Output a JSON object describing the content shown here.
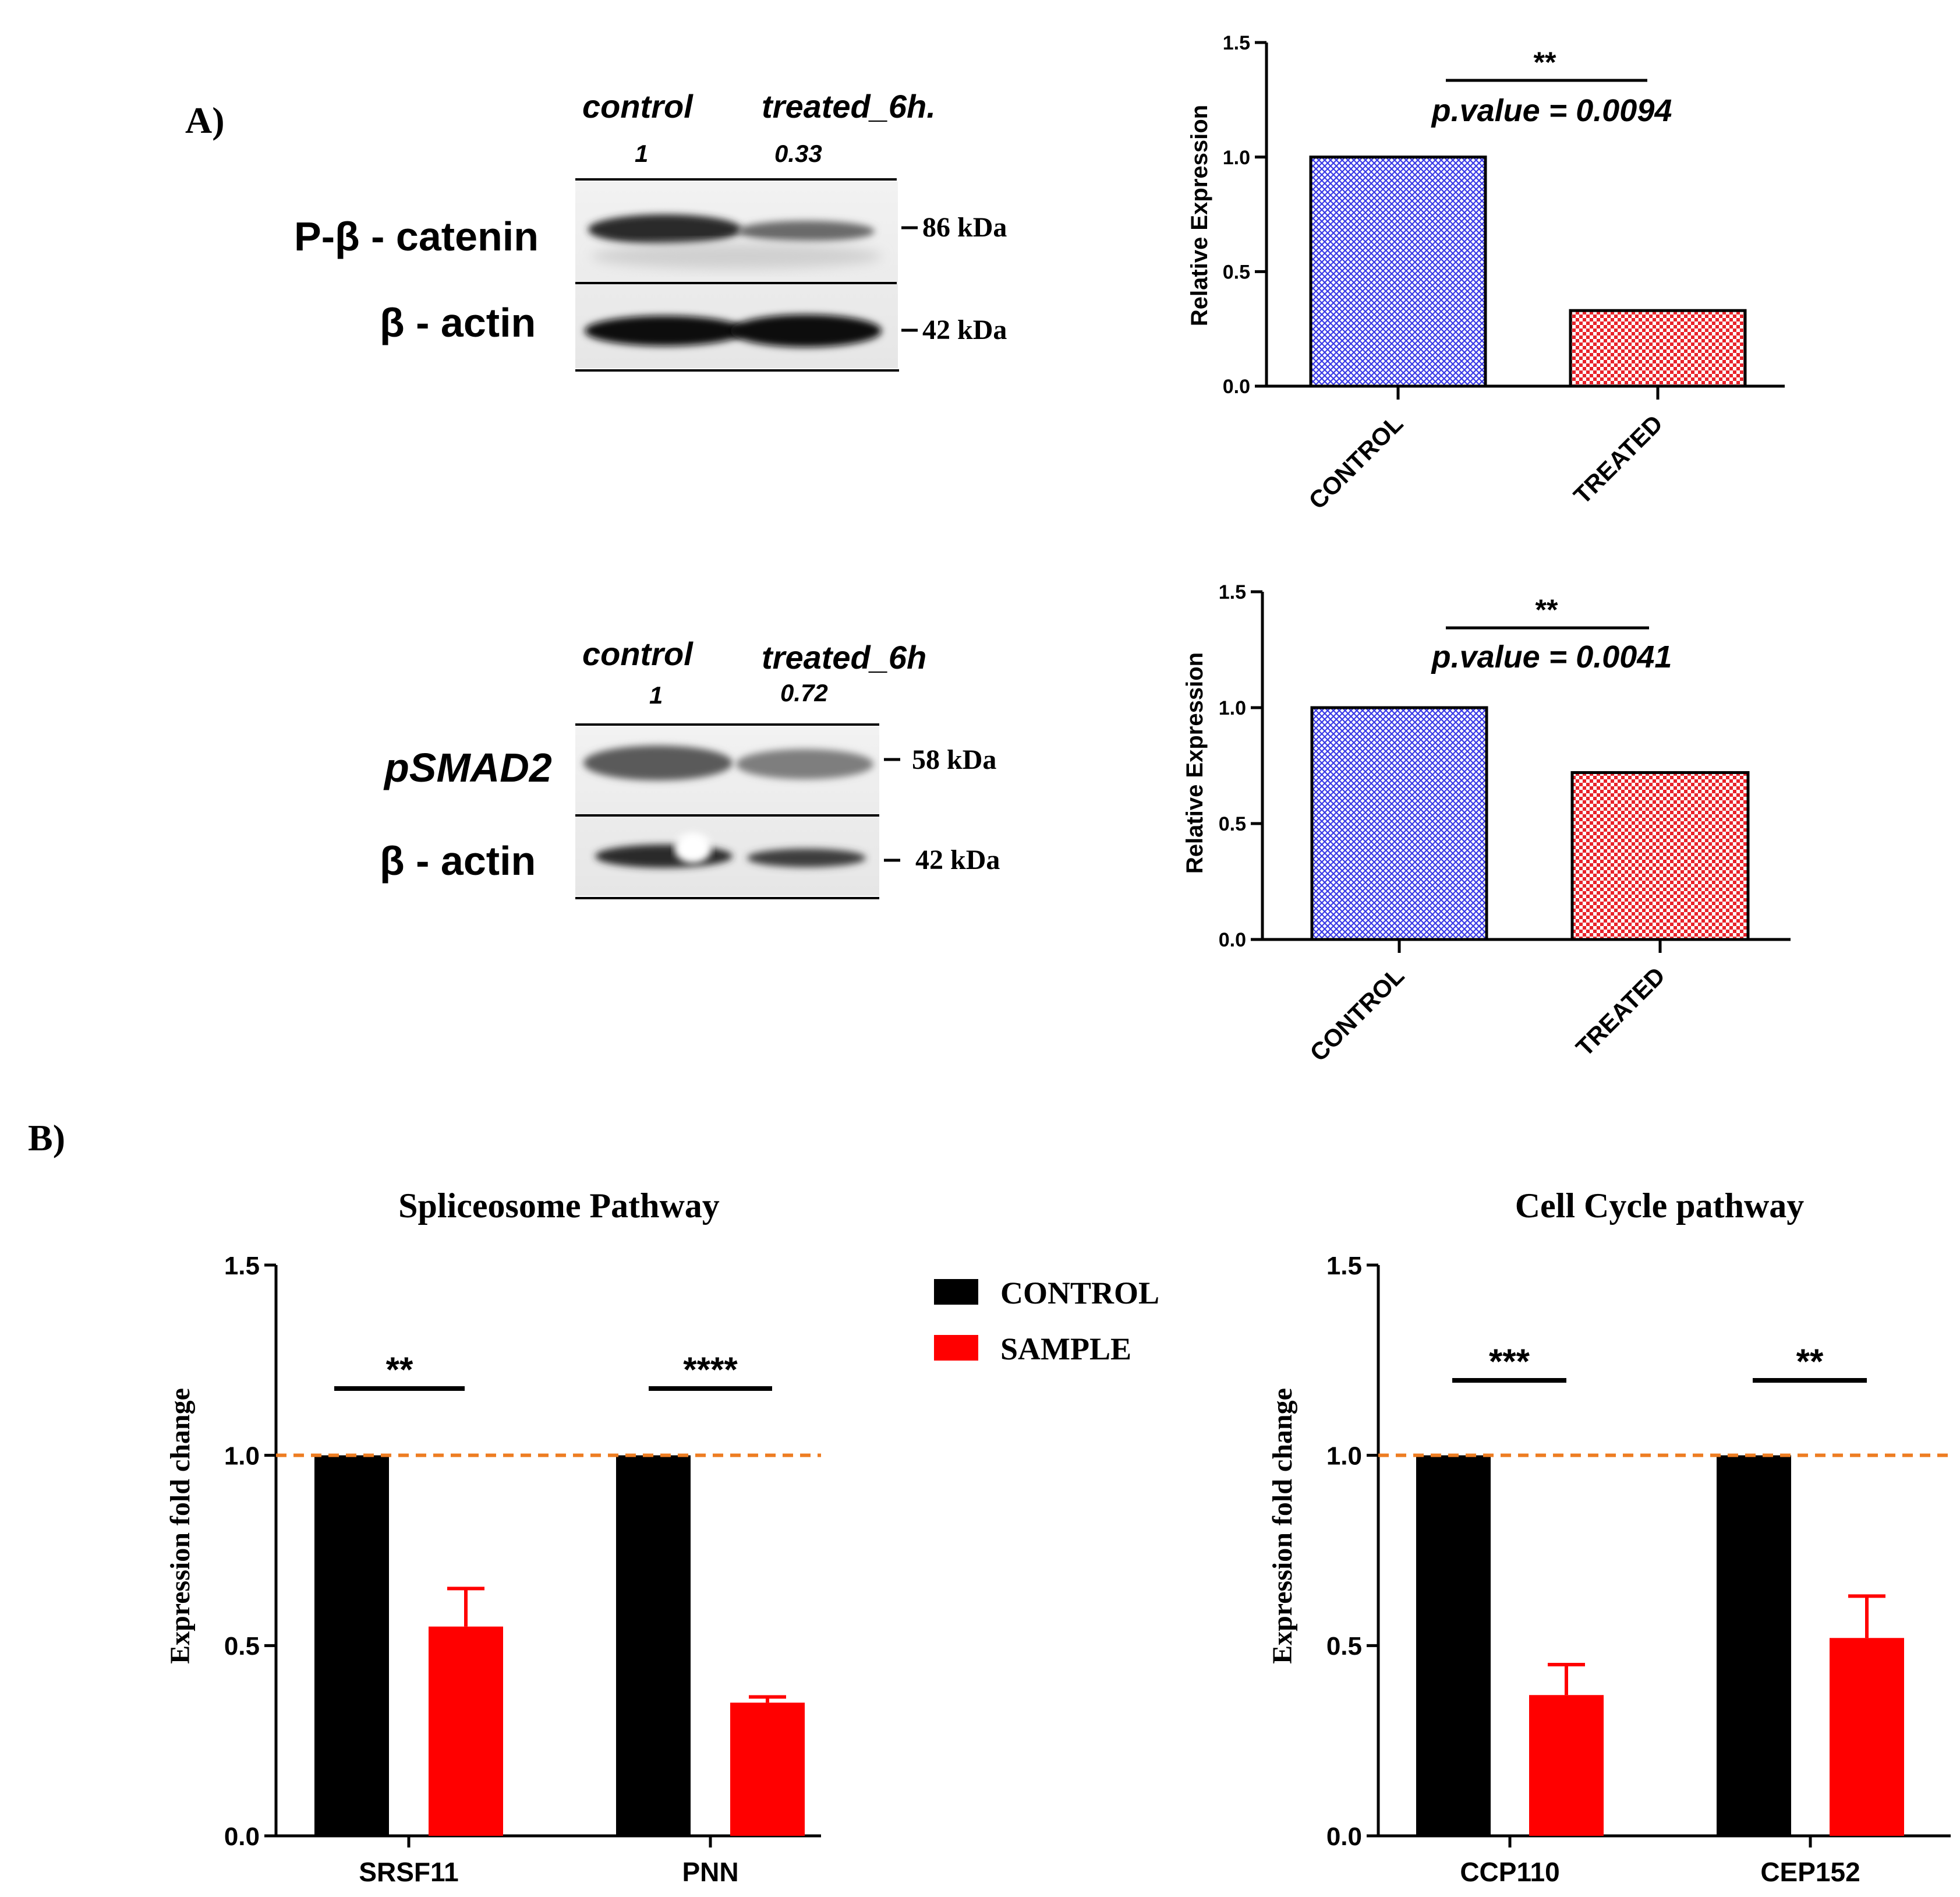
{
  "panel_labels": {
    "a": "A)",
    "b": "B)"
  },
  "blot1": {
    "lanes": [
      "control",
      "treated_6h."
    ],
    "ratios": [
      "1",
      "0.33"
    ],
    "rows": [
      {
        "label": "P-β - catenin",
        "marker": "86 kDa"
      },
      {
        "label": "β - actin",
        "marker": "42 kDa"
      }
    ]
  },
  "blot2": {
    "lanes": [
      "control",
      "treated_6h"
    ],
    "ratios": [
      "1",
      "0.72"
    ],
    "rows": [
      {
        "label": "pSMAD2",
        "marker": "58 kDa"
      },
      {
        "label": "β - actin",
        "marker": "42 kDa"
      }
    ]
  },
  "colors": {
    "control_blue": "#3a3ae6",
    "treated_red": "#e8232a",
    "bar_black": "#000000",
    "bar_red": "#ff0000",
    "ref_line": "#ee7d22"
  },
  "chart_data": [
    {
      "id": "top_right",
      "type": "bar",
      "categories": [
        "CONTROL",
        "TREATED"
      ],
      "values": [
        1.0,
        0.33
      ],
      "ylabel": "Relative Expression",
      "ylim": [
        0,
        1.5
      ],
      "yticks": [
        "0.0",
        "0.5",
        "1.0",
        "1.5"
      ],
      "significance": "**",
      "p_value_text": "p.value = 0.0094"
    },
    {
      "id": "mid_right",
      "type": "bar",
      "categories": [
        "CONTROL",
        "TREATED"
      ],
      "values": [
        1.0,
        0.72
      ],
      "ylabel": "Relative Expression",
      "ylim": [
        0,
        1.5
      ],
      "yticks": [
        "0.0",
        "0.5",
        "1.0",
        "1.5"
      ],
      "significance": "**",
      "p_value_text": "p.value = 0.0041"
    },
    {
      "id": "spliceosome",
      "type": "bar",
      "title": "Spliceosome Pathway",
      "categories": [
        "SRSF11",
        "PNN"
      ],
      "series": [
        {
          "name": "CONTROL",
          "values": [
            1.0,
            1.0
          ]
        },
        {
          "name": "SAMPLE",
          "values": [
            0.55,
            0.35
          ],
          "errors": [
            0.1,
            0.015
          ]
        }
      ],
      "significance": [
        "**",
        "****"
      ],
      "reference_line": 1.0,
      "ylabel": "Expression fold change",
      "ylim": [
        0,
        1.5
      ],
      "yticks": [
        "0.0",
        "0.5",
        "1.0",
        "1.5"
      ],
      "legend": [
        "CONTROL",
        "SAMPLE"
      ]
    },
    {
      "id": "cell_cycle",
      "type": "bar",
      "title": "Cell Cycle pathway",
      "categories": [
        "CCP110",
        "CEP152"
      ],
      "series": [
        {
          "name": "CONTROL",
          "values": [
            1.0,
            1.0
          ]
        },
        {
          "name": "SAMPLE",
          "values": [
            0.37,
            0.52
          ],
          "errors": [
            0.08,
            0.11
          ]
        }
      ],
      "significance": [
        "***",
        "**"
      ],
      "reference_line": 1.0,
      "ylabel": "Expression fold change",
      "ylim": [
        0,
        1.5
      ],
      "yticks": [
        "0.0",
        "0.5",
        "1.0",
        "1.5"
      ]
    }
  ]
}
